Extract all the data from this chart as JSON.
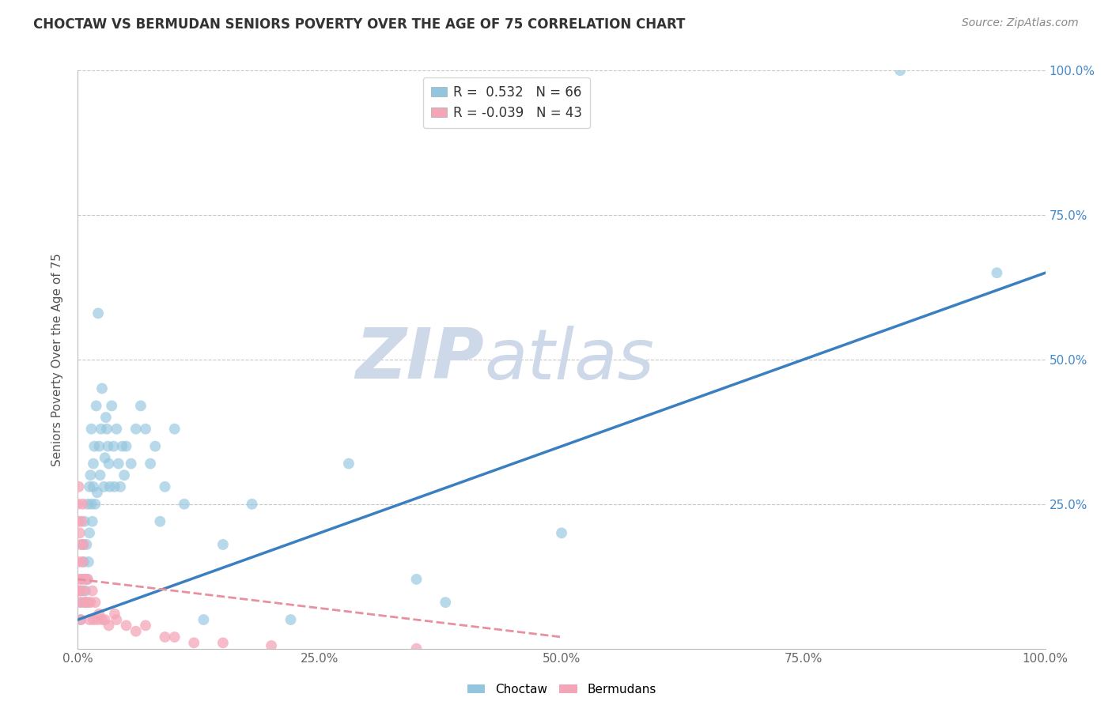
{
  "title": "CHOCTAW VS BERMUDAN SENIORS POVERTY OVER THE AGE OF 75 CORRELATION CHART",
  "source": "Source: ZipAtlas.com",
  "ylabel": "Seniors Poverty Over the Age of 75",
  "choctaw_R": 0.532,
  "choctaw_N": 66,
  "bermudans_R": -0.039,
  "bermudans_N": 43,
  "choctaw_color": "#92c5de",
  "bermudans_color": "#f4a6b8",
  "choctaw_line_color": "#3a7fbf",
  "bermudans_line_color": "#e8909f",
  "watermark_zip": "ZIP",
  "watermark_atlas": "atlas",
  "watermark_color": "#cdd8e8",
  "background_color": "#ffffff",
  "grid_color": "#c8c8c8",
  "choctaw_x": [
    0.002,
    0.003,
    0.004,
    0.005,
    0.005,
    0.006,
    0.007,
    0.008,
    0.008,
    0.009,
    0.01,
    0.01,
    0.011,
    0.012,
    0.012,
    0.013,
    0.014,
    0.014,
    0.015,
    0.016,
    0.016,
    0.017,
    0.018,
    0.019,
    0.02,
    0.021,
    0.022,
    0.023,
    0.024,
    0.025,
    0.027,
    0.028,
    0.029,
    0.03,
    0.031,
    0.032,
    0.033,
    0.035,
    0.037,
    0.038,
    0.04,
    0.042,
    0.044,
    0.046,
    0.048,
    0.05,
    0.055,
    0.06,
    0.065,
    0.07,
    0.075,
    0.08,
    0.085,
    0.09,
    0.1,
    0.11,
    0.13,
    0.15,
    0.18,
    0.22,
    0.28,
    0.35,
    0.38,
    0.5,
    0.85,
    0.95
  ],
  "choctaw_y": [
    0.1,
    0.05,
    0.08,
    0.12,
    0.18,
    0.15,
    0.22,
    0.1,
    0.08,
    0.18,
    0.12,
    0.25,
    0.15,
    0.28,
    0.2,
    0.3,
    0.25,
    0.38,
    0.22,
    0.28,
    0.32,
    0.35,
    0.25,
    0.42,
    0.27,
    0.58,
    0.35,
    0.3,
    0.38,
    0.45,
    0.28,
    0.33,
    0.4,
    0.38,
    0.35,
    0.32,
    0.28,
    0.42,
    0.35,
    0.28,
    0.38,
    0.32,
    0.28,
    0.35,
    0.3,
    0.35,
    0.32,
    0.38,
    0.42,
    0.38,
    0.32,
    0.35,
    0.22,
    0.28,
    0.38,
    0.25,
    0.05,
    0.18,
    0.25,
    0.05,
    0.32,
    0.12,
    0.08,
    0.2,
    1.0,
    0.65
  ],
  "bermudans_x": [
    0.0,
    0.0,
    0.001,
    0.001,
    0.001,
    0.002,
    0.002,
    0.002,
    0.003,
    0.003,
    0.003,
    0.004,
    0.004,
    0.005,
    0.005,
    0.006,
    0.006,
    0.007,
    0.008,
    0.009,
    0.01,
    0.011,
    0.012,
    0.013,
    0.015,
    0.016,
    0.018,
    0.02,
    0.022,
    0.025,
    0.028,
    0.032,
    0.038,
    0.04,
    0.05,
    0.06,
    0.07,
    0.09,
    0.1,
    0.12,
    0.15,
    0.2,
    0.35
  ],
  "bermudans_y": [
    0.1,
    0.25,
    0.28,
    0.22,
    0.15,
    0.2,
    0.12,
    0.08,
    0.18,
    0.1,
    0.05,
    0.22,
    0.12,
    0.25,
    0.15,
    0.18,
    0.1,
    0.08,
    0.12,
    0.08,
    0.12,
    0.08,
    0.05,
    0.08,
    0.1,
    0.05,
    0.08,
    0.05,
    0.06,
    0.05,
    0.05,
    0.04,
    0.06,
    0.05,
    0.04,
    0.03,
    0.04,
    0.02,
    0.02,
    0.01,
    0.01,
    0.005,
    0.0
  ],
  "xlim": [
    0.0,
    1.0
  ],
  "ylim": [
    0.0,
    1.0
  ],
  "xtick_positions": [
    0.0,
    0.25,
    0.5,
    0.75,
    1.0
  ],
  "xtick_labels": [
    "0.0%",
    "25.0%",
    "50.0%",
    "75.0%",
    "100.0%"
  ],
  "right_ytick_positions": [
    0.25,
    0.5,
    0.75,
    1.0
  ],
  "right_ytick_labels": [
    "25.0%",
    "50.0%",
    "75.0%",
    "100.0%"
  ],
  "choctaw_line_x0": 0.0,
  "choctaw_line_y0": 0.05,
  "choctaw_line_x1": 1.0,
  "choctaw_line_y1": 0.65,
  "bermudans_line_x0": 0.0,
  "bermudans_line_y0": 0.12,
  "bermudans_line_x1": 0.5,
  "bermudans_line_y1": 0.02
}
